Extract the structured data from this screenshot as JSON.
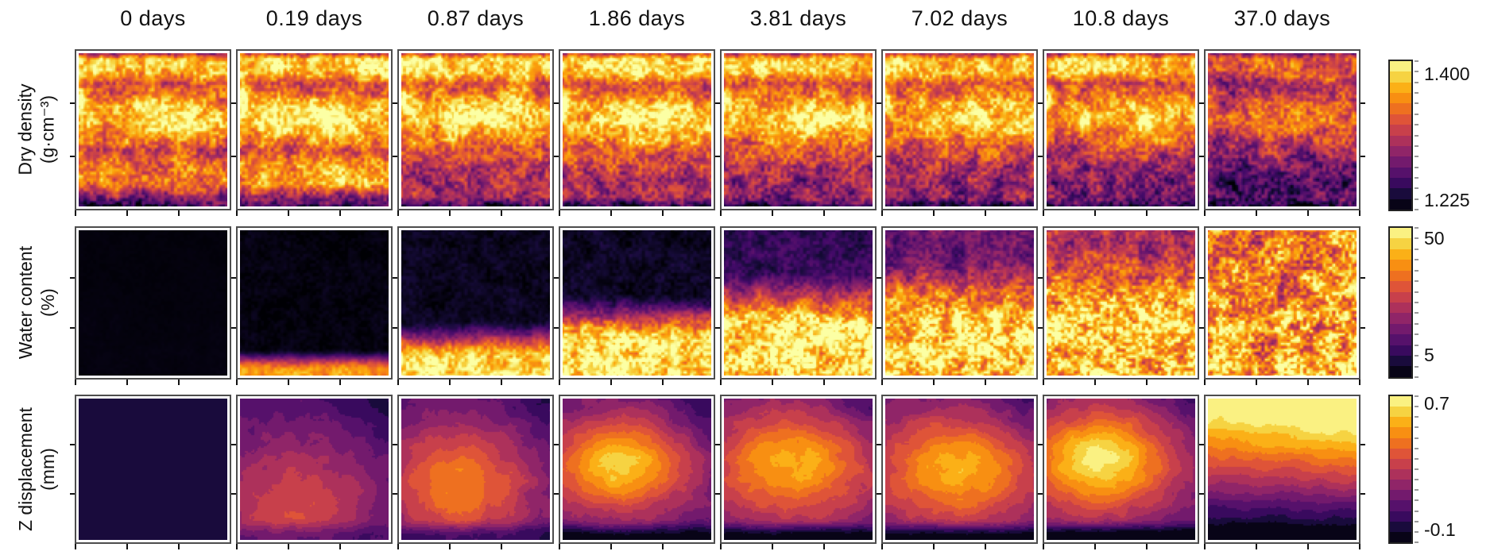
{
  "figure": {
    "columns": [
      "0 days",
      "0.19 days",
      "0.87 days",
      "1.86 days",
      "3.81 days",
      "7.02 days",
      "10.8 days",
      "37.0 days"
    ],
    "row_labels": [
      {
        "line1": "Dry density",
        "line2": "(g·cm⁻³)"
      },
      {
        "line1": "Water content",
        "line2": "(%)"
      },
      {
        "line1": "Z displacement",
        "line2": "(mm)"
      }
    ],
    "colorbars": [
      {
        "max": "1.400",
        "min": "1.225"
      },
      {
        "max": "50",
        "min": "5"
      },
      {
        "max": "0.7",
        "min": "-0.1"
      }
    ]
  },
  "chart_data": {
    "type": "heatmap",
    "colormap": "inferno",
    "colorbar_segments": 14,
    "grid": "3 rows x 8 columns",
    "time_days": [
      0,
      0.19,
      0.87,
      1.86,
      3.81,
      7.02,
      10.8,
      37.0
    ],
    "rows": [
      {
        "quantity": "Dry density",
        "units": "g·cm⁻³",
        "scale_min": 1.225,
        "scale_max": 1.4,
        "pattern": "speckled field with horizontal bands: bright band near top, dark band at ~20% depth, bright middle blob centre-right, lower half progressively darker (less dense) at later times; thin dark line at very top and bottom edges",
        "panels": [
          {
            "gain": 0.93,
            "b1": 0.72,
            "b2": 0.78
          },
          {
            "gain": 1.0,
            "b1": 0.78,
            "b2": 0.82
          },
          {
            "gain": 1.0,
            "b1": 0.55,
            "b2": 0.45
          },
          {
            "gain": 1.0,
            "b1": 0.55,
            "b2": 0.45
          },
          {
            "gain": 0.97,
            "b1": 0.5,
            "b2": 0.42
          },
          {
            "gain": 0.95,
            "b1": 0.5,
            "b2": 0.4
          },
          {
            "gain": 0.92,
            "b1": 0.46,
            "b2": 0.38
          },
          {
            "gain": 0.72,
            "b1": 0.42,
            "b2": 0.34,
            "ld": 0.15
          }
        ]
      },
      {
        "quantity": "Water content",
        "units": "%",
        "scale_min": 5,
        "scale_max": 50,
        "pattern": "wetting front rising from the bottom: 0 days fully dry (black); bright wet zone climbs upward with time until nearly saturated at 37 days",
        "panels": [
          {
            "top": 0.015,
            "bottom": 0.02,
            "mid": 0.5,
            "w": 0.3,
            "noise": 0.012
          },
          {
            "top": 0.02,
            "bottom": 0.78,
            "mid": 0.89,
            "w": 0.075,
            "noise": 0.05
          },
          {
            "top": 0.05,
            "bottom": 0.92,
            "mid": 0.75,
            "w": 0.14,
            "noise": 0.07
          },
          {
            "top": 0.06,
            "bottom": 0.94,
            "mid": 0.6,
            "w": 0.18,
            "noise": 0.08
          },
          {
            "top": 0.16,
            "bottom": 0.93,
            "mid": 0.47,
            "w": 0.22,
            "noise": 0.09
          },
          {
            "top": 0.3,
            "bottom": 0.9,
            "mid": 0.4,
            "w": 0.24,
            "noise": 0.1
          },
          {
            "top": 0.46,
            "bottom": 0.86,
            "mid": 0.33,
            "w": 0.26,
            "noise": 0.11
          },
          {
            "top": 0.68,
            "bottom": 0.8,
            "mid": 0.5,
            "w": 0.5,
            "noise": 0.13
          }
        ]
      },
      {
        "quantity": "Z displacement",
        "units": "mm",
        "scale_min": -0.1,
        "scale_max": 0.7,
        "levels": 14,
        "pattern": "smooth quantized contour bands: uniform near-zero at 0 days; swelling bulge centred left-of-middle grows brighter through 10.8 days; at 37 days maximum uplift across the top (brightest top-right) grading to black at the base",
        "panels": [
          {
            "kind": "flat",
            "v": 0.12,
            "wig": 0
          },
          {
            "kind": "blob",
            "cx": 0.36,
            "cy": 0.74,
            "rx": 0.62,
            "ry": 0.52,
            "peak": 0.56,
            "edge": 0.2,
            "tr": 0.1,
            "bot": 0.35,
            "wig": 0.035
          },
          {
            "kind": "blob",
            "cx": 0.38,
            "cy": 0.6,
            "rx": 0.56,
            "ry": 0.46,
            "peak": 0.7,
            "edge": 0.23,
            "tr": 0.12,
            "bot": 0.55,
            "wig": 0.04
          },
          {
            "kind": "blob",
            "cx": 0.38,
            "cy": 0.47,
            "rx": 0.5,
            "ry": 0.35,
            "peak": 0.88,
            "edge": 0.25,
            "tr": 0.13,
            "bot": 0.85,
            "wig": 0.04
          },
          {
            "kind": "blob",
            "cx": 0.46,
            "cy": 0.47,
            "rx": 0.58,
            "ry": 0.4,
            "peak": 0.82,
            "edge": 0.27,
            "tr": 0.12,
            "bot": 0.9,
            "wig": 0.04
          },
          {
            "kind": "blob",
            "cx": 0.48,
            "cy": 0.5,
            "rx": 0.58,
            "ry": 0.4,
            "peak": 0.82,
            "edge": 0.27,
            "tr": 0.1,
            "bot": 0.9,
            "wig": 0.04
          },
          {
            "kind": "blob",
            "cx": 0.36,
            "cy": 0.44,
            "rx": 0.52,
            "ry": 0.37,
            "peak": 0.94,
            "edge": 0.27,
            "tr": 0.1,
            "bot": 1.0,
            "wig": 0.04
          },
          {
            "kind": "topglow",
            "bot": 1.0,
            "wig": 0.03
          }
        ]
      }
    ]
  }
}
